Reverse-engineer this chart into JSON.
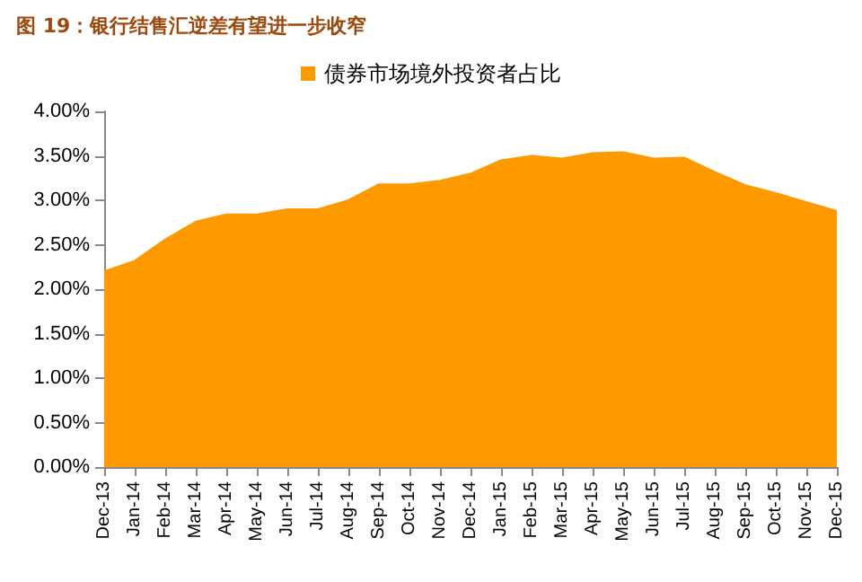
{
  "chart_data": {
    "type": "area",
    "title": "图 19：银行结售汇逆差有望进一步收窄",
    "categories": [
      "Dec-13",
      "Jan-14",
      "Feb-14",
      "Mar-14",
      "Apr-14",
      "May-14",
      "Jun-14",
      "Jul-14",
      "Aug-14",
      "Sep-14",
      "Oct-14",
      "Nov-14",
      "Dec-14",
      "Jan-15",
      "Feb-15",
      "Mar-15",
      "Apr-15",
      "May-15",
      "Jun-15",
      "Jul-15",
      "Aug-15",
      "Sep-15",
      "Oct-15",
      "Nov-15",
      "Dec-15"
    ],
    "series": [
      {
        "name": "债券市场境外投资者占比",
        "color": "#ff9900",
        "values": [
          2.2,
          2.32,
          2.56,
          2.76,
          2.84,
          2.84,
          2.9,
          2.9,
          3.0,
          3.18,
          3.18,
          3.22,
          3.3,
          3.45,
          3.5,
          3.47,
          3.53,
          3.54,
          3.47,
          3.48,
          3.32,
          3.17,
          3.08,
          2.98,
          2.88
        ]
      }
    ],
    "ylim": [
      0,
      4
    ],
    "yticks": [
      {
        "value": 0,
        "label": "0.00%"
      },
      {
        "value": 0.5,
        "label": "0.50%"
      },
      {
        "value": 1,
        "label": "1.00%"
      },
      {
        "value": 1.5,
        "label": "1.50%"
      },
      {
        "value": 2,
        "label": "2.00%"
      },
      {
        "value": 2.5,
        "label": "2.50%"
      },
      {
        "value": 3,
        "label": "3.00%"
      },
      {
        "value": 3.5,
        "label": "3.50%"
      },
      {
        "value": 4,
        "label": "4.00%"
      }
    ],
    "grid": false,
    "legend": "top",
    "marker": "none"
  }
}
